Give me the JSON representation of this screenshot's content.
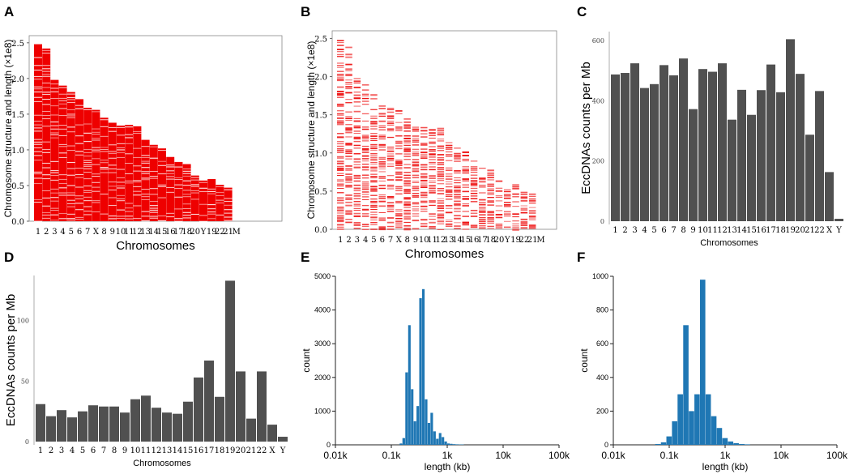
{
  "panel_labels": [
    "A",
    "B",
    "C",
    "D",
    "E",
    "F"
  ],
  "chart_data": [
    {
      "id": "A",
      "type": "bar",
      "title": "",
      "xlabel": "Chromosomes",
      "ylabel": "Chromosome structure and length (×1e8)",
      "ylim": [
        0,
        2.6
      ],
      "yticks": [
        "0.0",
        "0.5",
        "1.0",
        "1.5",
        "2.0",
        "2.5"
      ],
      "categories": [
        "1",
        "2",
        "3",
        "4",
        "5",
        "6",
        "7",
        "X",
        "8",
        "9",
        "10",
        "11",
        "12",
        "13",
        "14",
        "15",
        "16",
        "17",
        "18",
        "20",
        "Y",
        "19",
        "22",
        "21",
        "M"
      ],
      "values": [
        2.48,
        2.42,
        1.98,
        1.9,
        1.81,
        1.71,
        1.59,
        1.56,
        1.45,
        1.38,
        1.34,
        1.35,
        1.33,
        1.14,
        1.07,
        1.02,
        0.9,
        0.83,
        0.8,
        0.64,
        0.57,
        0.59,
        0.51,
        0.47,
        0.0
      ],
      "color": "#ee0000"
    },
    {
      "id": "B",
      "type": "bar",
      "title": "",
      "xlabel": "Chromosomes",
      "ylabel": "Chromosome structure and length (×1e8)",
      "ylim": [
        0,
        2.6
      ],
      "yticks": [
        "0.0",
        "0.5",
        "1.0",
        "1.5",
        "2.0",
        "2.5"
      ],
      "categories": [
        "1",
        "2",
        "3",
        "4",
        "5",
        "6",
        "7",
        "X",
        "8",
        "9",
        "10",
        "11",
        "12",
        "13",
        "14",
        "15",
        "16",
        "17",
        "18",
        "20",
        "Y",
        "19",
        "22",
        "21",
        "M"
      ],
      "values": [
        2.48,
        2.42,
        1.98,
        1.9,
        1.81,
        1.71,
        1.59,
        1.56,
        1.45,
        1.38,
        1.34,
        1.35,
        1.33,
        1.14,
        1.07,
        1.02,
        0.9,
        0.83,
        0.8,
        0.64,
        0.57,
        0.59,
        0.51,
        0.47,
        0.0
      ],
      "color": "#ee1111"
    },
    {
      "id": "C",
      "type": "bar",
      "title": "",
      "xlabel": "Chromosomes",
      "ylabel": "EccDNAs counts per Mb",
      "ylim": [
        0,
        640
      ],
      "yticks": [
        "0",
        "200",
        "400",
        "600"
      ],
      "ytick_values": [
        0,
        200,
        400,
        600
      ],
      "categories": [
        "1",
        "2",
        "3",
        "4",
        "5",
        "6",
        "7",
        "8",
        "9",
        "10",
        "11",
        "12",
        "13",
        "14",
        "15",
        "16",
        "17",
        "18",
        "19",
        "20",
        "21",
        "22",
        "X",
        "Y"
      ],
      "values": [
        487,
        492,
        524,
        442,
        455,
        518,
        484,
        540,
        372,
        505,
        496,
        524,
        337,
        436,
        353,
        435,
        520,
        428,
        604,
        489,
        287,
        432,
        163,
        8
      ],
      "color": "#505050"
    },
    {
      "id": "D",
      "type": "bar",
      "title": "",
      "xlabel": "Chromosomes",
      "ylabel": "EccDNAs counts per Mb",
      "ylim": [
        0,
        140
      ],
      "yticks": [
        "0",
        "50",
        "100"
      ],
      "ytick_values": [
        0,
        50,
        100
      ],
      "categories": [
        "1",
        "2",
        "3",
        "4",
        "5",
        "6",
        "7",
        "8",
        "9",
        "10",
        "11",
        "12",
        "13",
        "14",
        "15",
        "16",
        "17",
        "18",
        "19",
        "20",
        "21",
        "22",
        "X",
        "Y"
      ],
      "values": [
        31,
        21,
        26,
        20,
        25,
        30,
        29,
        29,
        24,
        35,
        38,
        28,
        24,
        23,
        33,
        53,
        67,
        37,
        133,
        58,
        19,
        58,
        14,
        4
      ],
      "color": "#505050"
    },
    {
      "id": "E",
      "type": "bar",
      "subtype": "histogram",
      "title": "",
      "xlabel": "length (kb)",
      "ylabel": "count",
      "xscale": "log",
      "xlim": [
        0.01,
        100
      ],
      "ylim": [
        0,
        5000
      ],
      "xticks": [
        "0.01k",
        "0.1k",
        "1k",
        "10k",
        "100k"
      ],
      "xtick_values": [
        0.01,
        0.1,
        1,
        10,
        100
      ],
      "yticks": [
        "0",
        "1000",
        "2000",
        "3000",
        "4000",
        "5000"
      ],
      "ytick_values": [
        0,
        1000,
        2000,
        3000,
        4000,
        5000
      ],
      "bin_edges": [
        0.141,
        0.158,
        0.178,
        0.2,
        0.224,
        0.251,
        0.282,
        0.316,
        0.355,
        0.398,
        0.447,
        0.501,
        0.562,
        0.631,
        0.708,
        0.794,
        0.891,
        1.0,
        1.122,
        1.259,
        1.413,
        1.585,
        2.0
      ],
      "values": [
        40,
        200,
        2150,
        3550,
        1650,
        700,
        1150,
        4350,
        4620,
        1350,
        650,
        950,
        400,
        180,
        350,
        230,
        100,
        40,
        30,
        20,
        15,
        10
      ],
      "color": "#1f77b4"
    },
    {
      "id": "F",
      "type": "bar",
      "subtype": "histogram",
      "title": "",
      "xlabel": "length (kb)",
      "ylabel": "count",
      "xscale": "log",
      "xlim": [
        0.01,
        100
      ],
      "ylim": [
        0,
        1000
      ],
      "xticks": [
        "0.01k",
        "0.1k",
        "1k",
        "10k",
        "100k"
      ],
      "xtick_values": [
        0.01,
        0.1,
        1,
        10,
        100
      ],
      "yticks": [
        "0",
        "200",
        "400",
        "600",
        "800",
        "1000"
      ],
      "ytick_values": [
        0,
        200,
        400,
        600,
        800,
        1000
      ],
      "bin_edges": [
        0.056,
        0.071,
        0.089,
        0.112,
        0.141,
        0.178,
        0.224,
        0.282,
        0.355,
        0.447,
        0.562,
        0.708,
        0.891,
        1.122,
        1.413,
        1.778,
        2.239,
        2.818
      ],
      "values": [
        5,
        15,
        50,
        140,
        300,
        710,
        200,
        300,
        980,
        300,
        170,
        100,
        40,
        20,
        10,
        5,
        3
      ],
      "color": "#1f77b4"
    }
  ]
}
